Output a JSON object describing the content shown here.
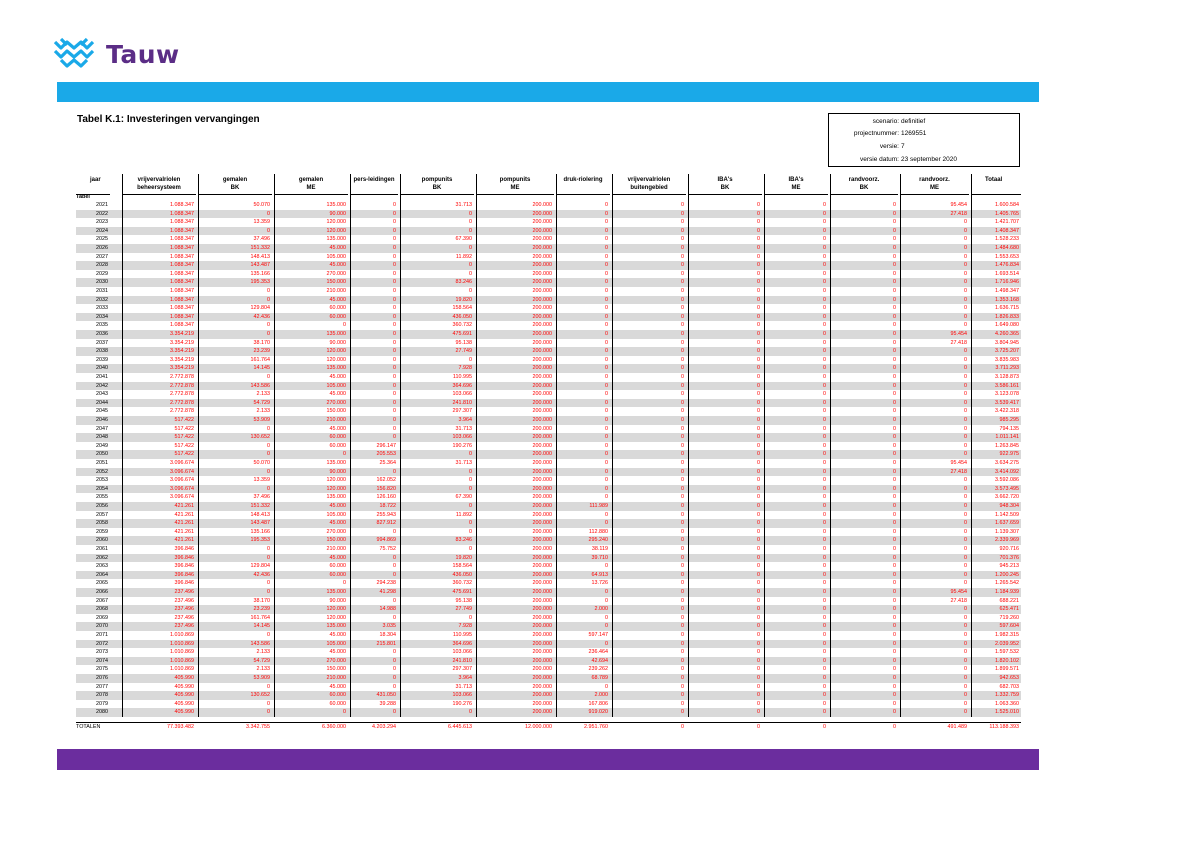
{
  "logo": {
    "text": "Tauw",
    "colors": {
      "mark": "#1aa9e8",
      "text": "#5b2d86"
    }
  },
  "colors": {
    "top_band": "#1aa9e8",
    "bottom_band": "#6b2d9e",
    "values": "#ff0000",
    "alt_row": "#d9d9d9"
  },
  "title": "Tabel K.1: Investeringen vervangingen",
  "meta": [
    {
      "label": "scenario:",
      "value": "definitief"
    },
    {
      "label": "projectnummer:",
      "value": "1269551"
    },
    {
      "label": "versie:",
      "value": "7"
    },
    {
      "label": "versie datum:",
      "value": "23 september 2020"
    }
  ],
  "columns": [
    {
      "l1": "jaar",
      "l2": ""
    },
    {
      "l1": "vrijvervalriolen",
      "l2": "beheersysteem"
    },
    {
      "l1": "gemalen",
      "l2": "BK"
    },
    {
      "l1": "gemalen",
      "l2": "ME"
    },
    {
      "l1": "pers-leidingen",
      "l2": ""
    },
    {
      "l1": "pompunits",
      "l2": "BK"
    },
    {
      "l1": "pompunits",
      "l2": "ME"
    },
    {
      "l1": "druk-riolering",
      "l2": ""
    },
    {
      "l1": "vrijvervalriolen",
      "l2": "buitengebied"
    },
    {
      "l1": "IBA's",
      "l2": "BK"
    },
    {
      "l1": "IBA's",
      "l2": "ME"
    },
    {
      "l1": "randvoorz.",
      "l2": "BK"
    },
    {
      "l1": "randvoorz.",
      "l2": "ME"
    },
    {
      "l1": "Totaal",
      "l2": ""
    }
  ],
  "subheader": "Tabel",
  "rows": [
    [
      "2021",
      "1.088.347",
      "50.070",
      "135.000",
      "0",
      "31.713",
      "200.000",
      "0",
      "0",
      "0",
      "0",
      "0",
      "95.454",
      "1.600.584"
    ],
    [
      "2022",
      "1.088.347",
      "0",
      "90.000",
      "0",
      "0",
      "200.000",
      "0",
      "0",
      "0",
      "0",
      "0",
      "27.418",
      "1.405.765"
    ],
    [
      "2023",
      "1.088.347",
      "13.359",
      "120.000",
      "0",
      "0",
      "200.000",
      "0",
      "0",
      "0",
      "0",
      "0",
      "0",
      "1.421.707"
    ],
    [
      "2024",
      "1.088.347",
      "0",
      "120.000",
      "0",
      "0",
      "200.000",
      "0",
      "0",
      "0",
      "0",
      "0",
      "0",
      "1.408.347"
    ],
    [
      "2025",
      "1.088.347",
      "37.496",
      "135.000",
      "0",
      "67.390",
      "200.000",
      "0",
      "0",
      "0",
      "0",
      "0",
      "0",
      "1.528.233"
    ],
    [
      "2026",
      "1.088.347",
      "151.332",
      "45.000",
      "0",
      "0",
      "200.000",
      "0",
      "0",
      "0",
      "0",
      "0",
      "0",
      "1.484.680"
    ],
    [
      "2027",
      "1.088.347",
      "148.413",
      "105.000",
      "0",
      "11.892",
      "200.000",
      "0",
      "0",
      "0",
      "0",
      "0",
      "0",
      "1.553.653"
    ],
    [
      "2028",
      "1.088.347",
      "143.487",
      "45.000",
      "0",
      "0",
      "200.000",
      "0",
      "0",
      "0",
      "0",
      "0",
      "0",
      "1.476.834"
    ],
    [
      "2029",
      "1.088.347",
      "135.166",
      "270.000",
      "0",
      "0",
      "200.000",
      "0",
      "0",
      "0",
      "0",
      "0",
      "0",
      "1.693.514"
    ],
    [
      "2030",
      "1.088.347",
      "195.353",
      "150.000",
      "0",
      "83.246",
      "200.000",
      "0",
      "0",
      "0",
      "0",
      "0",
      "0",
      "1.716.946"
    ],
    [
      "2031",
      "1.088.347",
      "0",
      "210.000",
      "0",
      "0",
      "200.000",
      "0",
      "0",
      "0",
      "0",
      "0",
      "0",
      "1.498.347"
    ],
    [
      "2032",
      "1.088.347",
      "0",
      "45.000",
      "0",
      "19.820",
      "200.000",
      "0",
      "0",
      "0",
      "0",
      "0",
      "0",
      "1.353.168"
    ],
    [
      "2033",
      "1.088.347",
      "129.804",
      "60.000",
      "0",
      "158.564",
      "200.000",
      "0",
      "0",
      "0",
      "0",
      "0",
      "0",
      "1.636.715"
    ],
    [
      "2034",
      "1.088.347",
      "42.436",
      "60.000",
      "0",
      "436.050",
      "200.000",
      "0",
      "0",
      "0",
      "0",
      "0",
      "0",
      "1.826.833"
    ],
    [
      "2035",
      "1.088.347",
      "0",
      "0",
      "0",
      "360.732",
      "200.000",
      "0",
      "0",
      "0",
      "0",
      "0",
      "0",
      "1.649.080"
    ],
    [
      "2036",
      "3.354.219",
      "0",
      "135.000",
      "0",
      "475.691",
      "200.000",
      "0",
      "0",
      "0",
      "0",
      "0",
      "95.454",
      "4.260.365"
    ],
    [
      "2037",
      "3.354.219",
      "38.170",
      "90.000",
      "0",
      "95.138",
      "200.000",
      "0",
      "0",
      "0",
      "0",
      "0",
      "27.418",
      "3.804.945"
    ],
    [
      "2038",
      "3.354.219",
      "23.239",
      "120.000",
      "0",
      "27.749",
      "200.000",
      "0",
      "0",
      "0",
      "0",
      "0",
      "0",
      "3.725.207"
    ],
    [
      "2039",
      "3.354.219",
      "161.764",
      "120.000",
      "0",
      "0",
      "200.000",
      "0",
      "0",
      "0",
      "0",
      "0",
      "0",
      "3.835.983"
    ],
    [
      "2040",
      "3.354.219",
      "14.145",
      "135.000",
      "0",
      "7.928",
      "200.000",
      "0",
      "0",
      "0",
      "0",
      "0",
      "0",
      "3.711.293"
    ],
    [
      "2041",
      "2.772.878",
      "0",
      "45.000",
      "0",
      "110.995",
      "200.000",
      "0",
      "0",
      "0",
      "0",
      "0",
      "0",
      "3.128.873"
    ],
    [
      "2042",
      "2.772.878",
      "143.586",
      "105.000",
      "0",
      "364.696",
      "200.000",
      "0",
      "0",
      "0",
      "0",
      "0",
      "0",
      "3.586.161"
    ],
    [
      "2043",
      "2.772.878",
      "2.133",
      "45.000",
      "0",
      "103.066",
      "200.000",
      "0",
      "0",
      "0",
      "0",
      "0",
      "0",
      "3.123.078"
    ],
    [
      "2044",
      "2.772.878",
      "54.729",
      "270.000",
      "0",
      "241.810",
      "200.000",
      "0",
      "0",
      "0",
      "0",
      "0",
      "0",
      "3.539.417"
    ],
    [
      "2045",
      "2.772.878",
      "2.133",
      "150.000",
      "0",
      "297.307",
      "200.000",
      "0",
      "0",
      "0",
      "0",
      "0",
      "0",
      "3.422.318"
    ],
    [
      "2046",
      "517.422",
      "53.909",
      "210.000",
      "0",
      "3.964",
      "200.000",
      "0",
      "0",
      "0",
      "0",
      "0",
      "0",
      "985.295"
    ],
    [
      "2047",
      "517.422",
      "0",
      "45.000",
      "0",
      "31.713",
      "200.000",
      "0",
      "0",
      "0",
      "0",
      "0",
      "0",
      "794.135"
    ],
    [
      "2048",
      "517.422",
      "130.652",
      "60.000",
      "0",
      "103.066",
      "200.000",
      "0",
      "0",
      "0",
      "0",
      "0",
      "0",
      "1.011.141"
    ],
    [
      "2049",
      "517.422",
      "0",
      "60.000",
      "296.147",
      "190.276",
      "200.000",
      "0",
      "0",
      "0",
      "0",
      "0",
      "0",
      "1.263.845"
    ],
    [
      "2050",
      "517.422",
      "0",
      "0",
      "205.553",
      "0",
      "200.000",
      "0",
      "0",
      "0",
      "0",
      "0",
      "0",
      "922.975"
    ],
    [
      "2051",
      "3.096.674",
      "50.070",
      "135.000",
      "25.364",
      "31.713",
      "200.000",
      "0",
      "0",
      "0",
      "0",
      "0",
      "95.454",
      "3.634.275"
    ],
    [
      "2052",
      "3.096.674",
      "0",
      "90.000",
      "0",
      "0",
      "200.000",
      "0",
      "0",
      "0",
      "0",
      "0",
      "27.418",
      "3.414.092"
    ],
    [
      "2053",
      "3.096.674",
      "13.359",
      "120.000",
      "162.052",
      "0",
      "200.000",
      "0",
      "0",
      "0",
      "0",
      "0",
      "0",
      "3.592.086"
    ],
    [
      "2054",
      "3.096.674",
      "0",
      "120.000",
      "156.820",
      "0",
      "200.000",
      "0",
      "0",
      "0",
      "0",
      "0",
      "0",
      "3.573.495"
    ],
    [
      "2055",
      "3.096.674",
      "37.496",
      "135.000",
      "126.160",
      "67.390",
      "200.000",
      "0",
      "0",
      "0",
      "0",
      "0",
      "0",
      "3.662.720"
    ],
    [
      "2056",
      "421.261",
      "151.332",
      "45.000",
      "18.722",
      "0",
      "200.000",
      "111.989",
      "0",
      "0",
      "0",
      "0",
      "0",
      "948.304"
    ],
    [
      "2057",
      "421.261",
      "148.413",
      "105.000",
      "255.943",
      "11.892",
      "200.000",
      "0",
      "0",
      "0",
      "0",
      "0",
      "0",
      "1.142.509"
    ],
    [
      "2058",
      "421.261",
      "143.487",
      "45.000",
      "827.912",
      "0",
      "200.000",
      "0",
      "0",
      "0",
      "0",
      "0",
      "0",
      "1.637.659"
    ],
    [
      "2059",
      "421.261",
      "135.166",
      "270.000",
      "0",
      "0",
      "200.000",
      "112.880",
      "0",
      "0",
      "0",
      "0",
      "0",
      "1.139.307"
    ],
    [
      "2060",
      "421.261",
      "195.353",
      "150.000",
      "994.869",
      "83.246",
      "200.000",
      "295.240",
      "0",
      "0",
      "0",
      "0",
      "0",
      "2.339.969"
    ],
    [
      "2061",
      "396.846",
      "0",
      "210.000",
      "75.752",
      "0",
      "200.000",
      "38.119",
      "0",
      "0",
      "0",
      "0",
      "0",
      "920.716"
    ],
    [
      "2062",
      "396.846",
      "0",
      "45.000",
      "0",
      "19.820",
      "200.000",
      "39.710",
      "0",
      "0",
      "0",
      "0",
      "0",
      "701.376"
    ],
    [
      "2063",
      "396.846",
      "129.804",
      "60.000",
      "0",
      "158.564",
      "200.000",
      "0",
      "0",
      "0",
      "0",
      "0",
      "0",
      "945.213"
    ],
    [
      "2064",
      "396.846",
      "42.436",
      "60.000",
      "0",
      "436.050",
      "200.000",
      "64.913",
      "0",
      "0",
      "0",
      "0",
      "0",
      "1.200.245"
    ],
    [
      "2065",
      "396.846",
      "0",
      "0",
      "294.238",
      "360.732",
      "200.000",
      "13.726",
      "0",
      "0",
      "0",
      "0",
      "0",
      "1.265.542"
    ],
    [
      "2066",
      "237.496",
      "0",
      "135.000",
      "41.298",
      "475.691",
      "200.000",
      "0",
      "0",
      "0",
      "0",
      "0",
      "95.454",
      "1.184.939"
    ],
    [
      "2067",
      "237.496",
      "38.170",
      "90.000",
      "0",
      "95.138",
      "200.000",
      "0",
      "0",
      "0",
      "0",
      "0",
      "27.418",
      "688.221"
    ],
    [
      "2068",
      "237.496",
      "23.239",
      "120.000",
      "14.988",
      "27.749",
      "200.000",
      "2.000",
      "0",
      "0",
      "0",
      "0",
      "0",
      "625.471"
    ],
    [
      "2069",
      "237.496",
      "161.764",
      "120.000",
      "0",
      "0",
      "200.000",
      "0",
      "0",
      "0",
      "0",
      "0",
      "0",
      "719.260"
    ],
    [
      "2070",
      "237.496",
      "14.145",
      "135.000",
      "3.035",
      "7.928",
      "200.000",
      "0",
      "0",
      "0",
      "0",
      "0",
      "0",
      "597.604"
    ],
    [
      "2071",
      "1.010.869",
      "0",
      "45.000",
      "18.304",
      "110.995",
      "200.000",
      "597.147",
      "0",
      "0",
      "0",
      "0",
      "0",
      "1.982.315"
    ],
    [
      "2072",
      "1.010.869",
      "143.586",
      "105.000",
      "215.801",
      "364.696",
      "200.000",
      "0",
      "0",
      "0",
      "0",
      "0",
      "0",
      "2.039.952"
    ],
    [
      "2073",
      "1.010.869",
      "2.133",
      "45.000",
      "0",
      "103.066",
      "200.000",
      "236.464",
      "0",
      "0",
      "0",
      "0",
      "0",
      "1.597.532"
    ],
    [
      "2074",
      "1.010.869",
      "54.729",
      "270.000",
      "0",
      "241.810",
      "200.000",
      "42.694",
      "0",
      "0",
      "0",
      "0",
      "0",
      "1.820.102"
    ],
    [
      "2075",
      "1.010.869",
      "2.133",
      "150.000",
      "0",
      "297.307",
      "200.000",
      "239.262",
      "0",
      "0",
      "0",
      "0",
      "0",
      "1.899.571"
    ],
    [
      "2076",
      "405.990",
      "53.909",
      "210.000",
      "0",
      "3.964",
      "200.000",
      "68.789",
      "0",
      "0",
      "0",
      "0",
      "0",
      "942.653"
    ],
    [
      "2077",
      "405.990",
      "0",
      "45.000",
      "0",
      "31.713",
      "200.000",
      "0",
      "0",
      "0",
      "0",
      "0",
      "0",
      "682.703"
    ],
    [
      "2078",
      "405.990",
      "130.652",
      "60.000",
      "431.050",
      "103.066",
      "200.000",
      "2.000",
      "0",
      "0",
      "0",
      "0",
      "0",
      "1.332.759"
    ],
    [
      "2079",
      "405.990",
      "0",
      "60.000",
      "39.288",
      "190.276",
      "200.000",
      "167.806",
      "0",
      "0",
      "0",
      "0",
      "0",
      "1.063.360"
    ],
    [
      "2080",
      "405.990",
      "0",
      "0",
      "0",
      "0",
      "200.000",
      "919.020",
      "0",
      "0",
      "0",
      "0",
      "0",
      "1.525.010"
    ]
  ],
  "totals": [
    "TOTALEN",
    "77.393.482",
    "3.342.755",
    "6.360.000",
    "4.203.294",
    "6.445.613",
    "12.000.000",
    "2.951.760",
    "0",
    "0",
    "0",
    "0",
    "491.489",
    "113.188.393"
  ]
}
